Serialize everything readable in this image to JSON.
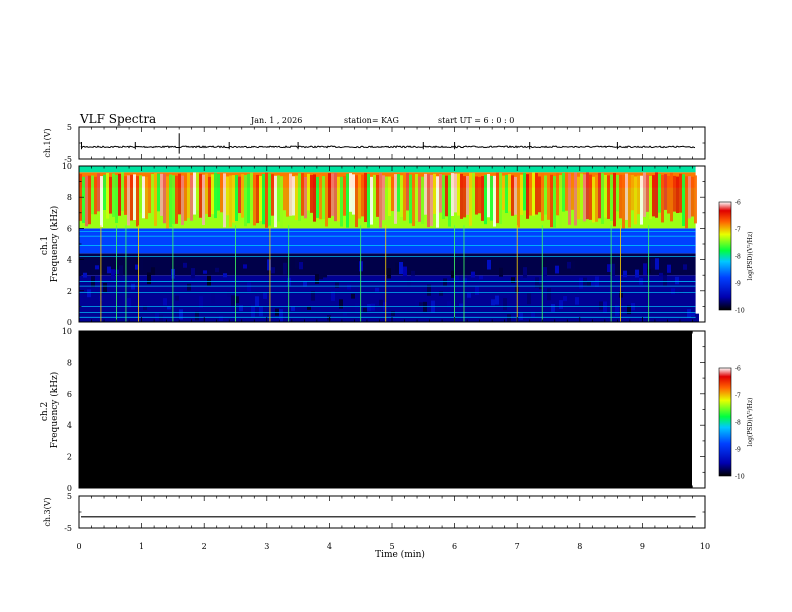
{
  "header": {
    "title": "VLF Spectra",
    "date": "Jan. 1 , 2026",
    "station": "station= KAG",
    "start": "start UT =  6 : 0  : 0"
  },
  "chart_data": [
    {
      "type": "line",
      "panel": "ch1-waveform",
      "ylabel": "ch.1(V)",
      "ylim": [
        -5,
        5
      ],
      "yticks": [
        "5",
        "-5"
      ],
      "baseline": -1.2,
      "spikes_min": [
        0.04,
        0.9,
        1.6,
        2.4,
        3.5,
        5.5,
        6.0,
        7.2,
        8.6
      ]
    },
    {
      "type": "heatmap",
      "panel": "ch1-spectrogram",
      "ylabel": "ch.1\nFrequency (kHz)",
      "ylim": [
        0,
        10
      ],
      "yticks": [
        "0",
        "2",
        "4",
        "6",
        "8",
        "10"
      ],
      "colorbar": {
        "label": "log(PSD)(V²/Hz)",
        "ticks": [
          "-6",
          "-7",
          "-8",
          "-9",
          "-10"
        ],
        "range": [
          -10,
          -6
        ]
      },
      "bands_khz": [
        {
          "from": 0,
          "to": 3,
          "level": -9.6
        },
        {
          "from": 3,
          "to": 4.4,
          "level": -9.8
        },
        {
          "from": 4.4,
          "to": 6,
          "level": -8.8
        },
        {
          "from": 6,
          "to": 8.6,
          "level": -7.4
        },
        {
          "from": 8.6,
          "to": 9.6,
          "level": -6.8
        },
        {
          "from": 9.6,
          "to": 10,
          "level": -8.0
        }
      ],
      "tone_lines_khz": [
        0.3,
        0.6,
        1.0,
        1.9,
        2.3,
        2.6,
        4.2,
        4.9,
        5.5,
        5.8
      ],
      "impulse_lines_min": [
        0.35,
        0.6,
        0.75,
        0.95,
        1.5,
        2.5,
        3.05,
        3.35,
        4.5,
        4.9,
        6.0,
        6.15,
        7.0,
        7.4,
        8.5,
        8.65,
        9.1
      ]
    },
    {
      "type": "heatmap",
      "panel": "ch2-spectrogram",
      "ylabel": "ch.2\nFrequency (kHz)",
      "ylim": [
        0,
        10
      ],
      "yticks": [
        "0",
        "2",
        "4",
        "6",
        "8",
        "10"
      ],
      "colorbar": {
        "label": "log(PSD)(V²/Hz)",
        "ticks": [
          "-6",
          "-7",
          "-8",
          "-9",
          "-10"
        ],
        "range": [
          -10,
          -6
        ]
      },
      "fill": "black"
    },
    {
      "type": "line",
      "panel": "ch3-waveform",
      "ylabel": "ch.3(V)",
      "ylim": [
        -5,
        5
      ],
      "yticks": [
        "5",
        "-5"
      ],
      "baseline": -1.5,
      "xlabel": "Time (min)",
      "xlim": [
        0,
        10
      ],
      "xticks": [
        "0",
        "1",
        "2",
        "3",
        "4",
        "5",
        "6",
        "7",
        "8",
        "9",
        "10"
      ],
      "data_end_min": 9.85
    }
  ]
}
